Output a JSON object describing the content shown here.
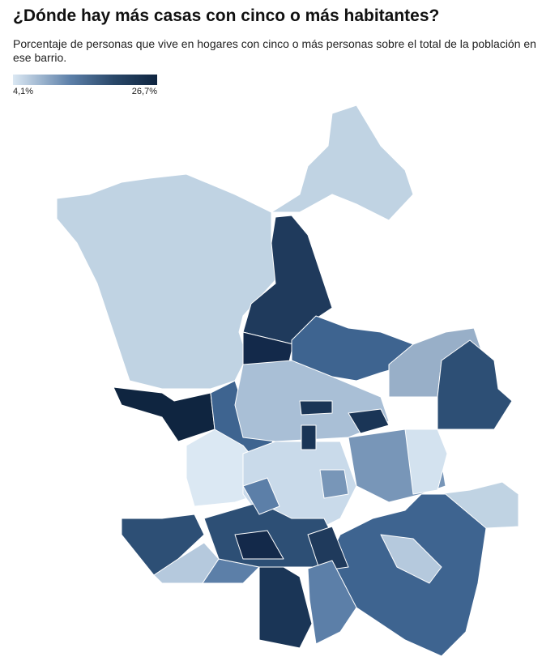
{
  "header": {
    "title": "¿Dónde hay más casas con cinco o más habitantes?",
    "subtitle": "Porcentaje de personas que vive en hogares con cinco o más personas sobre el total de la población en ese barrio."
  },
  "legend": {
    "min": "4,1%",
    "max": "26,7%"
  }
}
